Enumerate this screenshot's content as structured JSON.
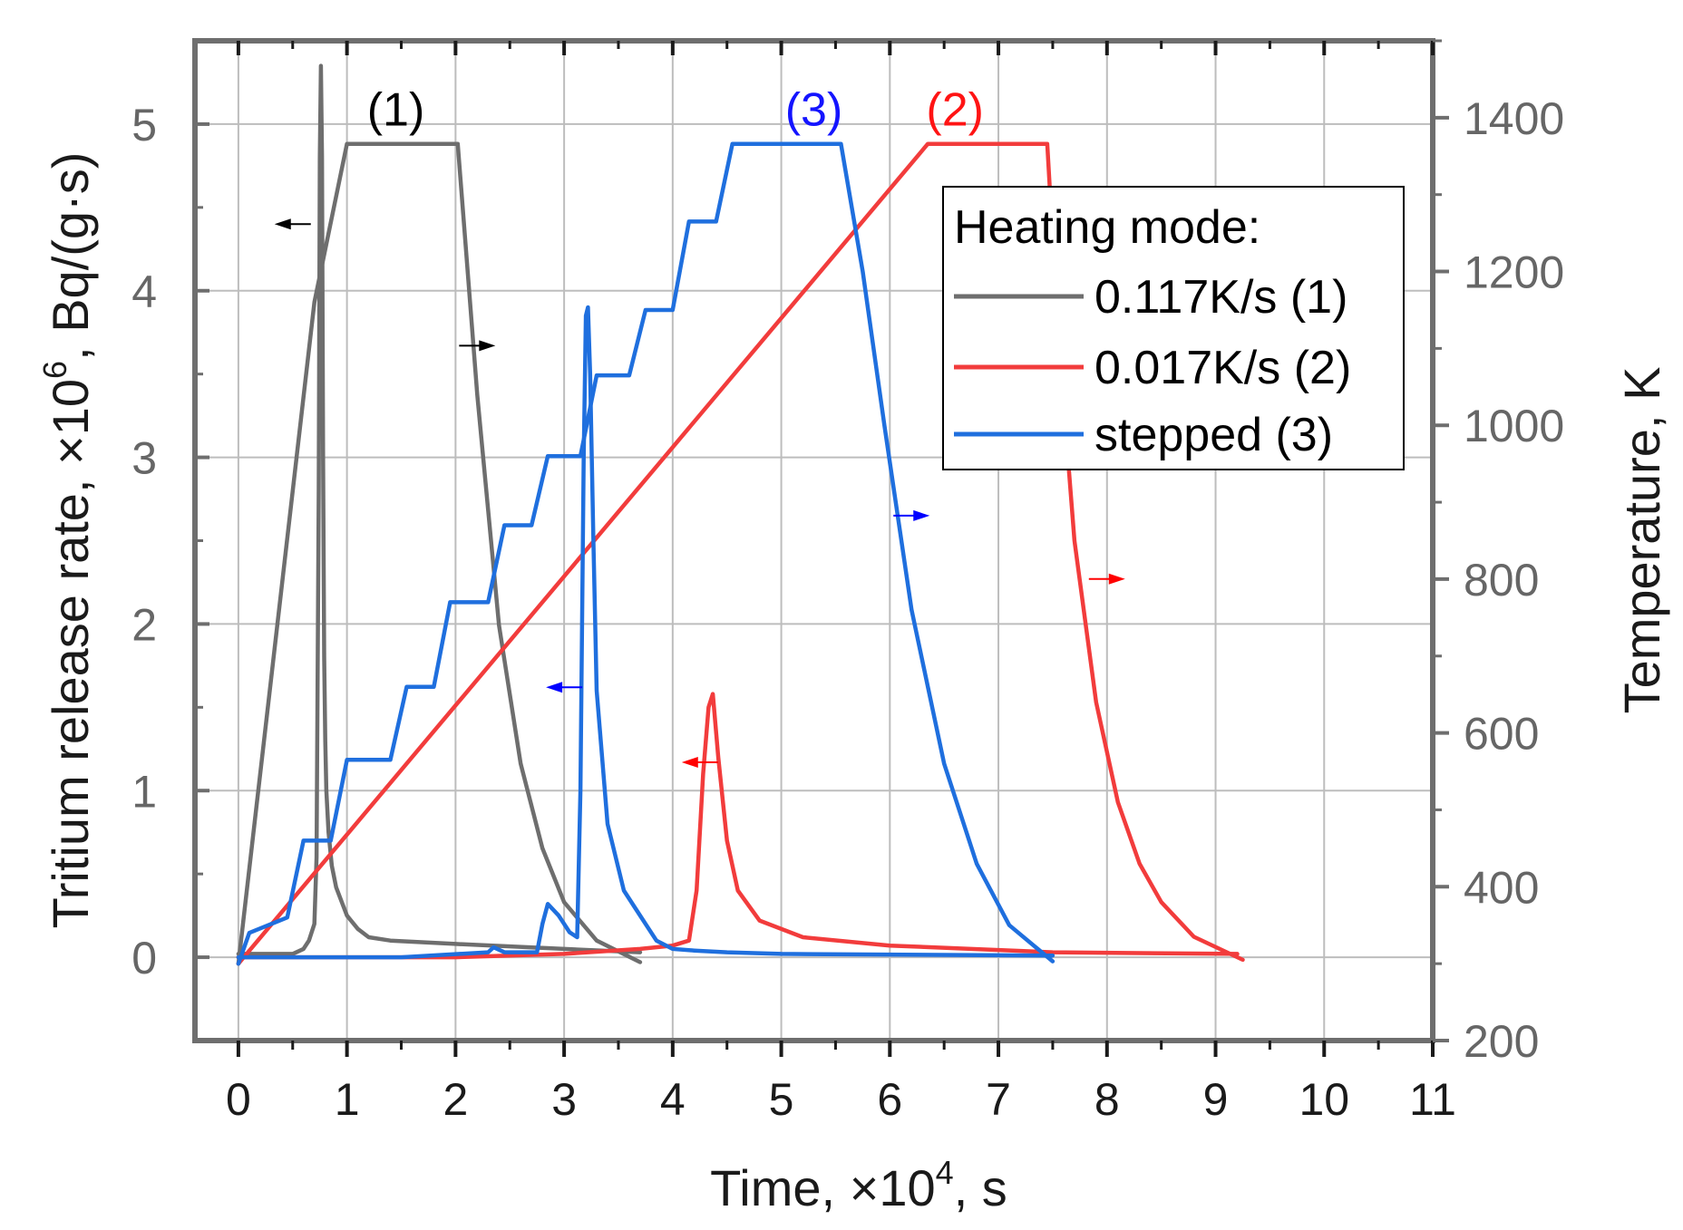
{
  "chart_data": {
    "type": "line",
    "xlabel": "Time, ×10",
    "xlabel_sup": "4",
    "xlabel_unit": ", s",
    "ylabel_left": "Tritium release rate, ×10",
    "ylabel_left_sup": "6",
    "ylabel_left_unit": ", Bq/(g·s)",
    "ylabel_right": "Temperature, K",
    "xlim": [
      -0.4,
      11
    ],
    "ylim_left": [
      -0.5,
      5.5
    ],
    "ylim_right": [
      200,
      1500
    ],
    "x_ticks": [
      "0",
      "1",
      "2",
      "3",
      "4",
      "5",
      "6",
      "7",
      "8",
      "9",
      "10",
      "11"
    ],
    "y_left_ticks": [
      "0",
      "1",
      "2",
      "3",
      "4",
      "5"
    ],
    "y_right_ticks": [
      "200",
      "400",
      "600",
      "800",
      "1000",
      "1200",
      "1400"
    ],
    "grid": true,
    "legend": {
      "title": "Heating mode:",
      "position": "top-right",
      "entries": [
        {
          "label": "0.117K/s (1)",
          "color": "#6e6e6e"
        },
        {
          "label": "0.017K/s (2)",
          "color": "#f23c3c"
        },
        {
          "label": "stepped (3)",
          "color": "#1f6fde"
        }
      ]
    },
    "annotations": [
      {
        "text": "(1)",
        "x": 1.45,
        "y_left": 5.1,
        "color": "#000000"
      },
      {
        "text": "(3)",
        "x": 5.3,
        "y_left": 5.1,
        "color": "#1414ff"
      },
      {
        "text": "(2)",
        "x": 6.6,
        "y_left": 5.1,
        "color": "#ff1414"
      }
    ],
    "axis_arrows": [
      {
        "x": 0.5,
        "y_left": 4.4,
        "direction": "left",
        "color": "#000000"
      },
      {
        "x": 2.2,
        "y_left": 3.67,
        "direction": "right",
        "color": "#000000"
      },
      {
        "x": 3.0,
        "y_left": 1.62,
        "direction": "left",
        "color": "#0000ff"
      },
      {
        "x": 6.2,
        "y_left": 2.65,
        "direction": "right",
        "color": "#0000ff"
      },
      {
        "x": 4.25,
        "y_left": 1.17,
        "direction": "left",
        "color": "#ff0000"
      },
      {
        "x": 8.0,
        "y_left": 2.27,
        "direction": "right",
        "color": "#ff0000"
      }
    ],
    "series": [
      {
        "name": "0.117K/s (1) release rate",
        "axis": "left",
        "color": "#6e6e6e",
        "x": [
          0,
          0.5,
          0.6,
          0.65,
          0.7,
          0.72,
          0.74,
          0.75,
          0.76,
          0.77,
          0.78,
          0.79,
          0.8,
          0.81,
          0.83,
          0.86,
          0.9,
          1.0,
          1.1,
          1.2,
          1.4,
          2.0,
          3.0,
          3.7
        ],
        "y": [
          0.02,
          0.02,
          0.05,
          0.1,
          0.2,
          0.6,
          2.8,
          4.8,
          5.35,
          4.8,
          3.0,
          1.8,
          1.3,
          1.0,
          0.75,
          0.55,
          0.42,
          0.25,
          0.17,
          0.12,
          0.1,
          0.08,
          0.05,
          0.03
        ]
      },
      {
        "name": "0.117K/s (1) temperature",
        "axis": "right",
        "color": "#6e6e6e",
        "x": [
          0,
          0.7,
          1.0,
          2.02,
          2.2,
          2.4,
          2.6,
          2.8,
          3.0,
          3.3,
          3.7
        ],
        "y": [
          300,
          1160,
          1366,
          1366,
          1040,
          740,
          560,
          450,
          380,
          330,
          302
        ]
      },
      {
        "name": "0.017K/s (2) release rate",
        "axis": "left",
        "color": "#f23c3c",
        "x": [
          0,
          2.0,
          3.0,
          3.7,
          4.0,
          4.15,
          4.22,
          4.28,
          4.33,
          4.37,
          4.42,
          4.5,
          4.6,
          4.8,
          5.2,
          6.0,
          7.5,
          9.2
        ],
        "y": [
          0.0,
          0.0,
          0.02,
          0.05,
          0.07,
          0.1,
          0.4,
          1.1,
          1.5,
          1.58,
          1.2,
          0.7,
          0.4,
          0.22,
          0.12,
          0.07,
          0.03,
          0.02
        ]
      },
      {
        "name": "0.017K/s (2) temperature",
        "axis": "right",
        "color": "#f23c3c",
        "x": [
          0,
          6.35,
          7.45,
          7.55,
          7.7,
          7.9,
          8.1,
          8.3,
          8.5,
          8.8,
          9.25
        ],
        "y": [
          300,
          1366,
          1366,
          1120,
          850,
          640,
          510,
          430,
          380,
          335,
          305
        ]
      },
      {
        "name": "stepped (3) release rate",
        "axis": "left",
        "color": "#1f6fde",
        "x": [
          0,
          1.5,
          2.3,
          2.35,
          2.45,
          2.75,
          2.8,
          2.85,
          2.95,
          3.05,
          3.12,
          3.15,
          3.18,
          3.2,
          3.22,
          3.24,
          3.27,
          3.3,
          3.4,
          3.55,
          3.65,
          3.75,
          3.85,
          4.0,
          4.2,
          4.5,
          5.0,
          7.5
        ],
        "y": [
          0.0,
          0.0,
          0.03,
          0.06,
          0.03,
          0.03,
          0.2,
          0.32,
          0.25,
          0.15,
          0.12,
          1.0,
          3.0,
          3.85,
          3.9,
          3.5,
          2.5,
          1.6,
          0.8,
          0.4,
          0.3,
          0.2,
          0.1,
          0.05,
          0.04,
          0.03,
          0.02,
          0.01
        ]
      },
      {
        "name": "stepped (3) temperature",
        "axis": "right",
        "color": "#1f6fde",
        "x": [
          0,
          0.1,
          0.45,
          0.6,
          0.85,
          1.0,
          1.4,
          1.55,
          1.8,
          1.95,
          2.3,
          2.45,
          2.7,
          2.85,
          3.15,
          3.3,
          3.6,
          3.75,
          4.0,
          4.15,
          4.4,
          4.55,
          5.0,
          5.55,
          5.75,
          5.95,
          6.2,
          6.5,
          6.8,
          7.1,
          7.5
        ],
        "y": [
          300,
          340,
          360,
          460,
          460,
          565,
          565,
          660,
          660,
          770,
          770,
          870,
          870,
          960,
          960,
          1065,
          1065,
          1150,
          1150,
          1265,
          1265,
          1366,
          1366,
          1366,
          1200,
          1000,
          760,
          560,
          430,
          350,
          303
        ]
      }
    ]
  }
}
